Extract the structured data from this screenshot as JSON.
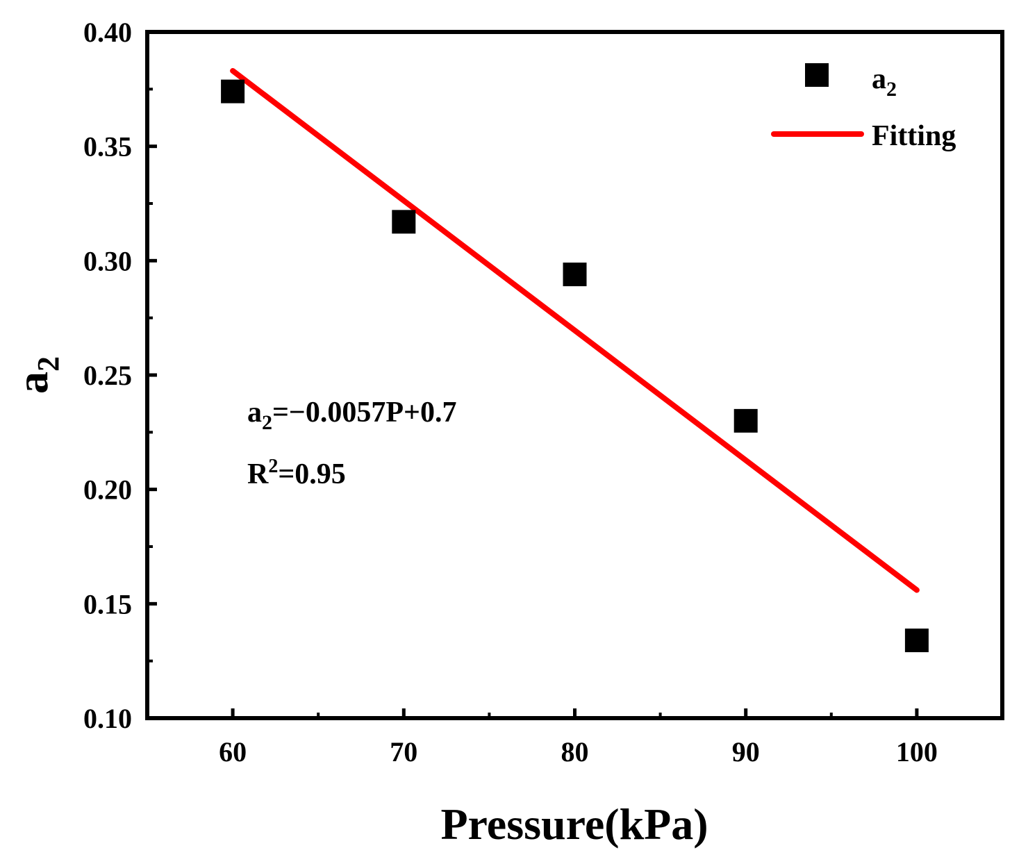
{
  "chart_data": {
    "type": "scatter",
    "title": "",
    "xlabel": "Pressure(kPa)",
    "ylabel": {
      "base": "a",
      "sub": "2"
    },
    "xlim": [
      55,
      105
    ],
    "ylim": [
      0.1,
      0.4
    ],
    "xticks": [
      60,
      70,
      80,
      90,
      100
    ],
    "xtick_labels": [
      "60",
      "70",
      "80",
      "90",
      "100"
    ],
    "yticks": [
      0.1,
      0.15,
      0.2,
      0.25,
      0.3,
      0.35,
      0.4
    ],
    "ytick_labels": [
      "0.10",
      "0.15",
      "0.20",
      "0.25",
      "0.30",
      "0.35",
      "0.40"
    ],
    "grid": false,
    "legend_position": "top-right",
    "series": [
      {
        "name": "a2",
        "legend_base": "a",
        "legend_sub": "2",
        "kind": "scatter",
        "marker": "square",
        "color": "#000000",
        "x": [
          60,
          70,
          80,
          90,
          100
        ],
        "y": [
          0.374,
          0.317,
          0.294,
          0.23,
          0.134
        ]
      },
      {
        "name": "Fitting",
        "legend_label": "Fitting",
        "kind": "line",
        "color": "#ff0000",
        "x": [
          60,
          100
        ],
        "y": [
          0.383,
          0.156
        ]
      }
    ],
    "annotations": {
      "equation": {
        "base": "a",
        "sub": "2",
        "rest": "=−0.0057P+0.7"
      },
      "r2": {
        "base": "R",
        "sup": "2",
        "rest": "=0.95"
      }
    }
  }
}
